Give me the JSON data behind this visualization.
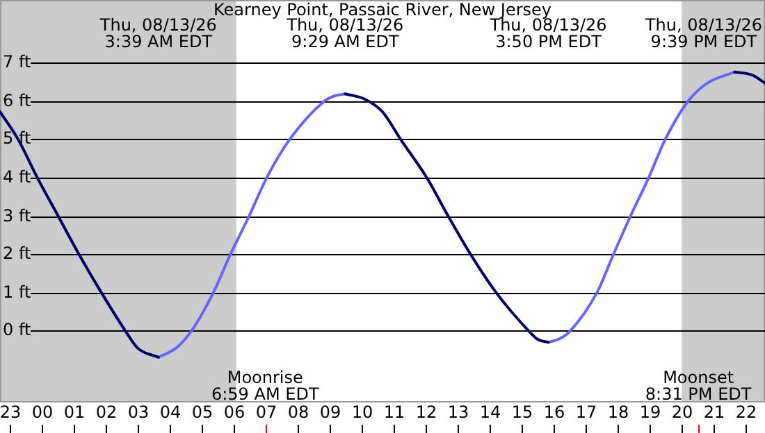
{
  "chart_data": {
    "type": "line",
    "title": "Kearney Point, Passaic River, New Jersey",
    "xlim": [
      "--08-12T22:42",
      "--08-13T22:36"
    ],
    "ylim": [
      -1.87,
      8.64
    ],
    "xticks": [
      {
        "value": "--08-12T23:00",
        "label": "23"
      },
      {
        "value": "--08-13T00:00",
        "label": "00"
      },
      {
        "value": "--08-13T01:00",
        "label": "01"
      },
      {
        "value": "--08-13T02:00",
        "label": "02"
      },
      {
        "value": "--08-13T03:00",
        "label": "03"
      },
      {
        "value": "--08-13T04:00",
        "label": "04"
      },
      {
        "value": "--08-13T05:00",
        "label": "05"
      },
      {
        "value": "--08-13T06:00",
        "label": "06"
      },
      {
        "value": "--08-13T07:00",
        "label": "07"
      },
      {
        "value": "--08-13T08:00",
        "label": "08"
      },
      {
        "value": "--08-13T09:00",
        "label": "09"
      },
      {
        "value": "--08-13T10:00",
        "label": "10"
      },
      {
        "value": "--08-13T11:00",
        "label": "11"
      },
      {
        "value": "--08-13T12:00",
        "label": "12"
      },
      {
        "value": "--08-13T13:00",
        "label": "13"
      },
      {
        "value": "--08-13T14:00",
        "label": "14"
      },
      {
        "value": "--08-13T15:00",
        "label": "15"
      },
      {
        "value": "--08-13T16:00",
        "label": "16"
      },
      {
        "value": "--08-13T17:00",
        "label": "17"
      },
      {
        "value": "--08-13T18:00",
        "label": "18"
      },
      {
        "value": "--08-13T19:00",
        "label": "19"
      },
      {
        "value": "--08-13T20:00",
        "label": "20"
      },
      {
        "value": "--08-13T21:00",
        "label": "21"
      },
      {
        "value": "--08-13T22:00",
        "label": "22"
      }
    ],
    "yticks": [
      {
        "value": 0,
        "label": "0 ft"
      },
      {
        "value": 1,
        "label": "1 ft"
      },
      {
        "value": 2,
        "label": "2 ft"
      },
      {
        "value": 3,
        "label": "3 ft"
      },
      {
        "value": 4,
        "label": "4 ft"
      },
      {
        "value": 5,
        "label": "5 ft"
      },
      {
        "value": 6,
        "label": "6 ft"
      },
      {
        "value": 7,
        "label": "7 ft"
      }
    ],
    "grid": "y",
    "legend": false,
    "series": [
      {
        "color": "#000066",
        "x": [
          "--08-12T22:42",
          "--08-12T23:16",
          "--08-12T23:52",
          "--08-13T00:31",
          "--08-13T01:10",
          "--08-13T01:52",
          "--08-13T02:37",
          "--08-13T03:00",
          "--08-13T03:39",
          "--08-13T06:30",
          "--08-13T09:29",
          "--08-13T10:06",
          "--08-13T10:39",
          "--08-13T11:13",
          "--08-13T12:02",
          "--08-13T12:42",
          "--08-13T13:24",
          "--08-13T14:12",
          "--08-13T15:13",
          "--08-13T15:30",
          "--08-13T15:50",
          "--08-13T19:00",
          "--08-13T21:39",
          "--08-13T22:12",
          "--08-13T22:36"
        ],
        "values": [
          5.72,
          5,
          4,
          3,
          2,
          1,
          0,
          -0.45,
          -0.69,
          null,
          6.19,
          6.05,
          5.72,
          5,
          4,
          3,
          2,
          1,
          0,
          -0.22,
          -0.3,
          null,
          6.76,
          6.68,
          6.47
        ]
      },
      {
        "color": "#6666ff",
        "x": [
          "--08-13T03:39",
          "--08-13T04:12",
          "--08-13T04:41",
          "--08-13T05:22",
          "--08-13T05:54",
          "--08-13T06:29",
          "--08-13T07:02",
          "--08-13T07:45",
          "--08-13T08:50",
          "--08-13T09:06",
          "--08-13T09:29",
          "--08-13T12:00",
          "--08-13T15:50",
          "--08-13T16:12",
          "--08-13T16:31",
          "--08-13T17:21",
          "--08-13T17:52",
          "--08-13T18:24",
          "--08-13T18:58",
          "--08-13T19:29",
          "--08-13T20:12",
          "--08-13T20:48",
          "--08-13T21:39"
        ],
        "values": [
          -0.69,
          -0.45,
          0,
          1,
          2,
          3,
          4,
          5,
          6,
          6.12,
          6.19,
          null,
          -0.3,
          -0.2,
          0,
          1,
          2,
          3,
          4,
          5,
          6,
          6.47,
          6.76
        ]
      }
    ],
    "bands": [
      {
        "axis": "x",
        "from": "--08-12T22:42",
        "to": "--08-13T06:05",
        "color": "#cccccc"
      },
      {
        "axis": "x",
        "from": "--08-13T20:00",
        "to": "--08-13T22:36",
        "color": "#cccccc"
      }
    ],
    "ref_lines": [
      {
        "axis": "x",
        "value": "--08-13T06:59",
        "label": "Moonrise\n6:59 AM EDT",
        "color": "#ff0000"
      },
      {
        "axis": "x",
        "value": "--08-13T20:31",
        "label": "Moonset\n8:31 PM EDT",
        "color": "#ff0000"
      }
    ],
    "annotations": [
      "Thu, 08/13/26\n3:39 AM EDT",
      "Thu, 08/13/26\n9:29 AM EDT",
      "Thu, 08/13/26\n3:50 PM EDT",
      "Thu, 08/13/26\n9:39 PM EDT"
    ]
  }
}
